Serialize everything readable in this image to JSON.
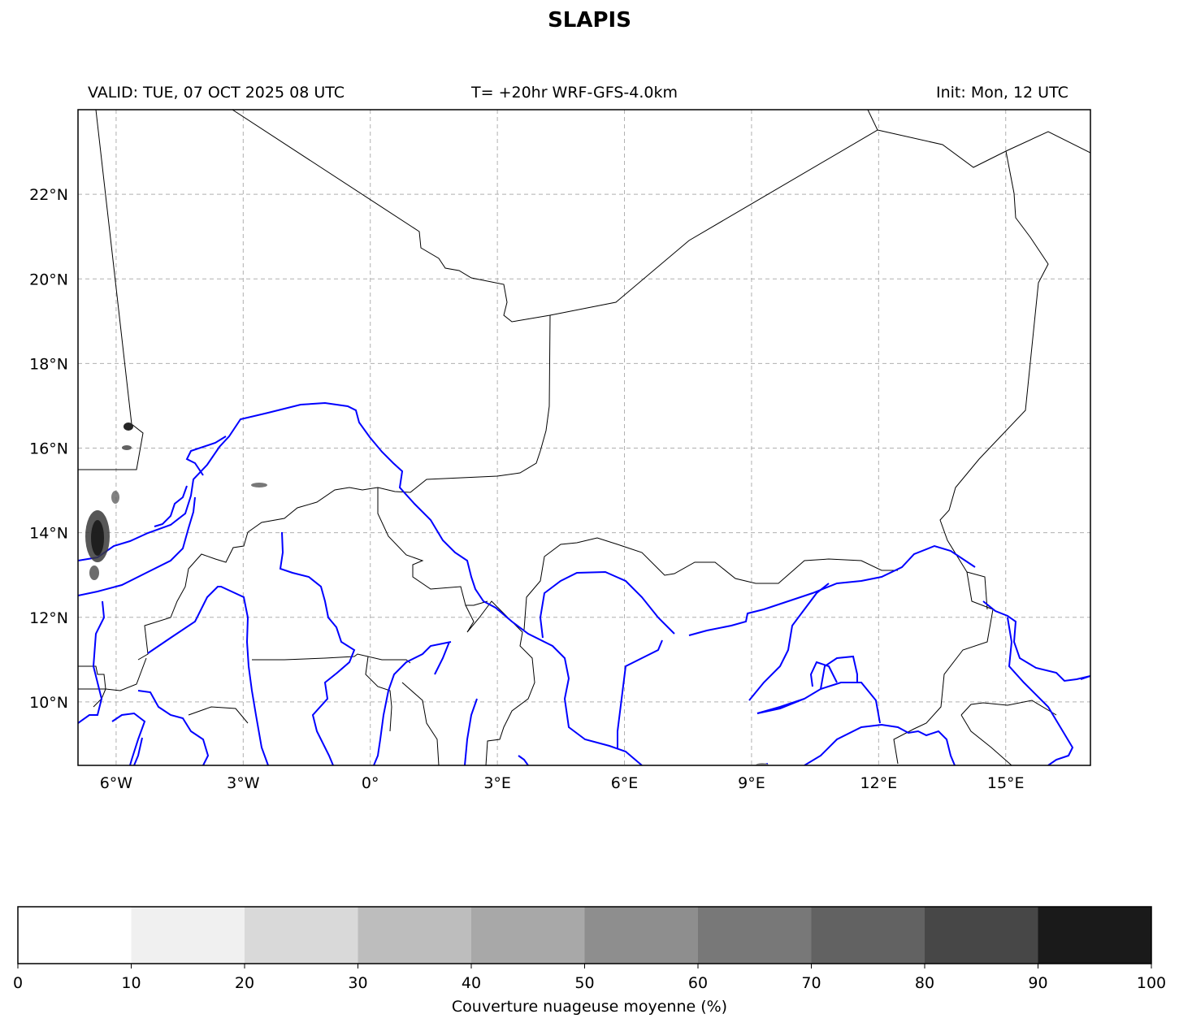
{
  "header": {
    "title": "SLAPIS",
    "valid": "VALID: TUE, 07 OCT 2025 08 UTC",
    "run": "T= +20hr WRF-GFS-4.0km",
    "init": "Init: Mon, 12 UTC"
  },
  "map": {
    "lon_range": [
      -6.9,
      17.0
    ],
    "lat_range": [
      8.5,
      24.0
    ],
    "lon_ticks": [
      {
        "value": -6,
        "label": "6°W"
      },
      {
        "value": -3,
        "label": "3°W"
      },
      {
        "value": 0,
        "label": "0°"
      },
      {
        "value": 3,
        "label": "3°E"
      },
      {
        "value": 6,
        "label": "6°E"
      },
      {
        "value": 9,
        "label": "9°E"
      },
      {
        "value": 12,
        "label": "12°E"
      },
      {
        "value": 15,
        "label": "15°E"
      }
    ],
    "lat_ticks": [
      {
        "value": 10,
        "label": "10°N"
      },
      {
        "value": 12,
        "label": "12°N"
      },
      {
        "value": 14,
        "label": "14°N"
      },
      {
        "value": 16,
        "label": "16°N"
      },
      {
        "value": 18,
        "label": "18°N"
      },
      {
        "value": 20,
        "label": "20°N"
      },
      {
        "value": 22,
        "label": "22°N"
      }
    ],
    "gridlines": true,
    "border_color": "#000000",
    "river_color": "#0000ff",
    "grid_color": "#b0b0b0"
  },
  "colorbar": {
    "label": "Couverture nuageuse moyenne (%)",
    "ticks": [
      "0",
      "10",
      "20",
      "30",
      "40",
      "50",
      "60",
      "70",
      "80",
      "90",
      "100"
    ],
    "colors": [
      "#ffffff",
      "#f0f0f0",
      "#d9d9d9",
      "#bdbdbd",
      "#a8a8a8",
      "#8e8e8e",
      "#787878",
      "#626262",
      "#474747",
      "#1a1a1a"
    ]
  }
}
